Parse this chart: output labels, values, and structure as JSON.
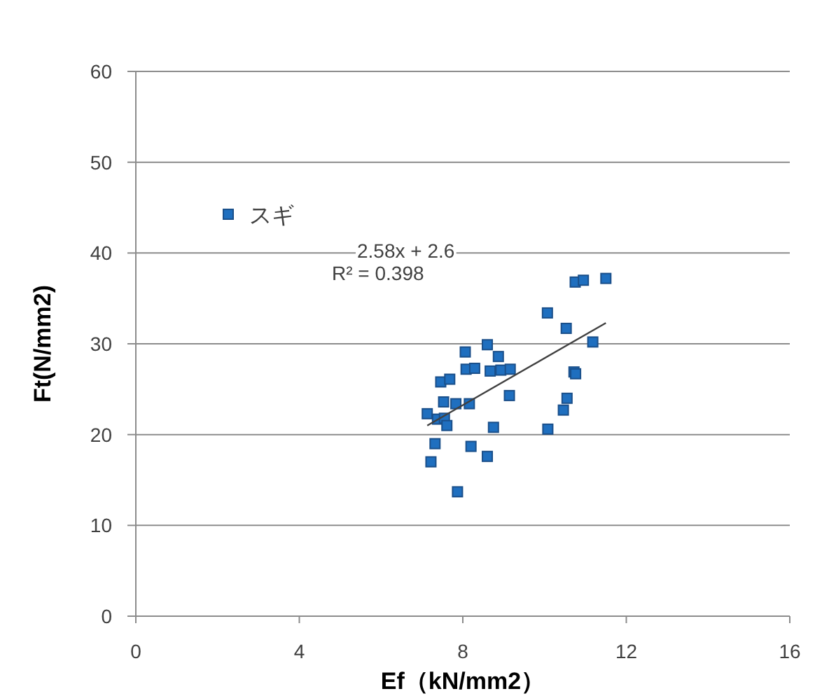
{
  "chart_data": {
    "type": "scatter",
    "xlabel": "Ef（kN/mm2）",
    "ylabel": "Ft(N/mm2)",
    "xlim": [
      0,
      16
    ],
    "ylim": [
      0,
      60
    ],
    "xticks": [
      0,
      4,
      8,
      12,
      16
    ],
    "yticks": [
      0,
      10,
      20,
      30,
      40,
      50,
      60
    ],
    "grid": "y",
    "legend": "top left",
    "marker": "square",
    "annotations": [
      "2.58x + 2.6",
      "R² = 0.398"
    ],
    "series": [
      {
        "name": "スギ",
        "color": "#1f6fbf",
        "x": [
          10.75,
          10.95,
          11.5,
          10.07,
          10.53,
          11.18,
          8.6,
          8.06,
          8.87,
          8.08,
          8.29,
          8.67,
          8.93,
          9.16,
          10.72,
          10.76,
          7.46,
          7.68,
          9.14,
          10.55,
          7.53,
          7.83,
          8.16,
          10.46,
          7.13,
          7.38,
          7.55,
          7.61,
          8.75,
          10.08,
          7.32,
          8.2,
          8.6,
          7.22,
          7.87
        ],
        "values": [
          36.8,
          37.0,
          37.2,
          33.4,
          31.7,
          30.2,
          29.9,
          29.1,
          28.6,
          27.2,
          27.3,
          27.0,
          27.1,
          27.2,
          26.9,
          26.7,
          25.8,
          26.1,
          24.3,
          24.0,
          23.6,
          23.4,
          23.4,
          22.7,
          22.3,
          21.7,
          21.8,
          21.0,
          20.8,
          20.6,
          19.0,
          18.7,
          17.6,
          17.0,
          13.7
        ]
      },
      {
        "type": "line",
        "marker": "none",
        "color": "#404040",
        "x": [
          7.13,
          11.5
        ],
        "values": [
          21.0,
          32.3
        ]
      }
    ]
  }
}
